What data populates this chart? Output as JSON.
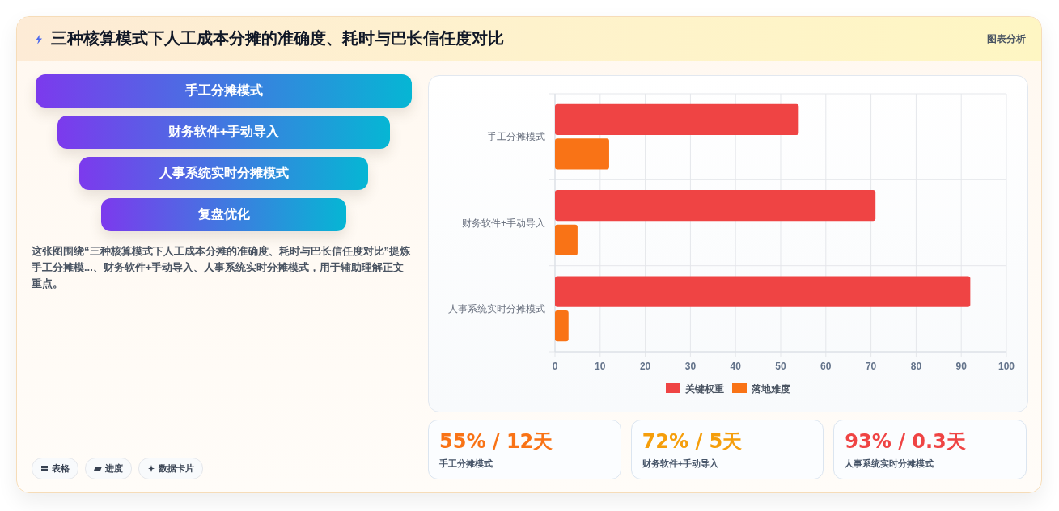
{
  "chart_data": [
    {
      "type": "other",
      "title": "三种核算模式下人工成本分摊的准确度、耗时与巴长信任度对比",
      "annotations": [
        "图表分析"
      ]
    },
    {
      "type": "other",
      "categories": [
        "手工分摊模式",
        "财务软件+手动导入",
        "人事系统实时分摊模式",
        "复盘优化"
      ],
      "annotations": [
        "这张图围绕“三种核算模式下人工成本分摊的准确度、耗时与巴长信任度对比”提炼手工分摊模...、财务软件+手动导入、人事系统实时分摊模式，用于辅助理解正文重点。",
        "表格",
        "进度",
        "数据卡片"
      ]
    },
    {
      "type": "bar",
      "orientation": "horizontal",
      "categories": [
        "手工分摊模式",
        "财务软件+手动导入",
        "人事系统实时分摊模式"
      ],
      "series": [
        {
          "name": "关键权重",
          "color": "#ef4444",
          "values": [
            54,
            71,
            92
          ]
        },
        {
          "name": "落地难度",
          "color": "#f97316",
          "values": [
            12,
            5,
            3
          ]
        }
      ],
      "xlim": [
        0,
        100
      ],
      "xticks": [
        0,
        10,
        20,
        30,
        40,
        50,
        60,
        70,
        80,
        90,
        100
      ],
      "grid": true,
      "legend": "bottom"
    },
    {
      "type": "other",
      "categories": [
        "手工分摊模式",
        "财务软件+手动导入",
        "人事系统实时分摊模式"
      ],
      "value_labels": [
        "55% / 12天",
        "72% / 5天",
        "93% / 0.3天"
      ]
    }
  ]
}
